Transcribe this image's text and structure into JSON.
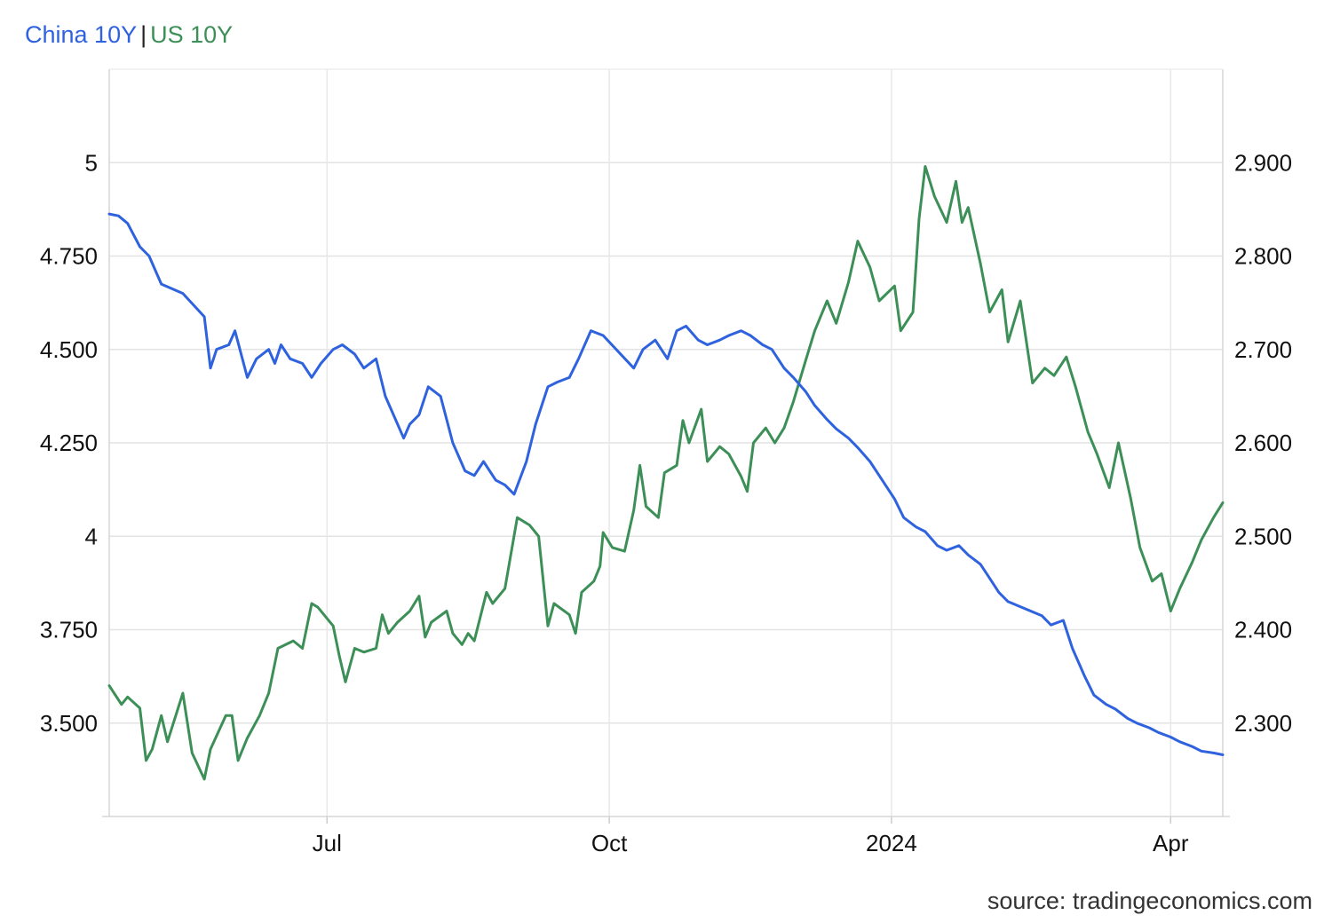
{
  "legend": {
    "china_label": "China 10Y",
    "separator": "|",
    "us_label": "US 10Y",
    "china_color": "#2f62de",
    "us_color": "#3c8f57"
  },
  "source": "source: tradingeconomics.com",
  "chart_data": {
    "type": "line",
    "x_range": [
      "2023-04-21",
      "2024-04-18"
    ],
    "x_ticks": [
      {
        "date": "2023-07-01",
        "label": "Jul"
      },
      {
        "date": "2023-10-01",
        "label": "Oct"
      },
      {
        "date": "2024-01-01",
        "label": "2024"
      },
      {
        "date": "2024-04-01",
        "label": "Apr"
      }
    ],
    "left_axis": {
      "series": "US 10Y",
      "range": [
        3.25,
        5.25
      ],
      "ticks": [
        3.5,
        3.75,
        4,
        4.25,
        4.5,
        4.75,
        5
      ],
      "tick_labels": [
        "3.500",
        "3.750",
        "4",
        "4.250",
        "4.500",
        "4.750",
        "5"
      ]
    },
    "right_axis": {
      "series": "China 10Y",
      "range": [
        2.2,
        3.0
      ],
      "ticks": [
        2.3,
        2.4,
        2.5,
        2.6,
        2.7,
        2.8,
        2.9
      ],
      "tick_labels": [
        "2.300",
        "2.400",
        "2.500",
        "2.600",
        "2.700",
        "2.800",
        "2.900"
      ]
    },
    "grid": true,
    "legend_position": "top-left",
    "series": [
      {
        "name": "China 10Y",
        "axis": "right",
        "color": "#2f62de",
        "points": [
          [
            "2023-04-21",
            2.845
          ],
          [
            "2023-04-24",
            2.843
          ],
          [
            "2023-04-27",
            2.835
          ],
          [
            "2023-05-01",
            2.81
          ],
          [
            "2023-05-04",
            2.8
          ],
          [
            "2023-05-08",
            2.77
          ],
          [
            "2023-05-15",
            2.76
          ],
          [
            "2023-05-22",
            2.735
          ],
          [
            "2023-05-24",
            2.68
          ],
          [
            "2023-05-26",
            2.7
          ],
          [
            "2023-05-30",
            2.705
          ],
          [
            "2023-06-01",
            2.72
          ],
          [
            "2023-06-05",
            2.67
          ],
          [
            "2023-06-08",
            2.69
          ],
          [
            "2023-06-12",
            2.7
          ],
          [
            "2023-06-14",
            2.685
          ],
          [
            "2023-06-16",
            2.705
          ],
          [
            "2023-06-19",
            2.69
          ],
          [
            "2023-06-23",
            2.685
          ],
          [
            "2023-06-26",
            2.67
          ],
          [
            "2023-06-29",
            2.685
          ],
          [
            "2023-07-03",
            2.7
          ],
          [
            "2023-07-06",
            2.705
          ],
          [
            "2023-07-10",
            2.695
          ],
          [
            "2023-07-13",
            2.68
          ],
          [
            "2023-07-17",
            2.69
          ],
          [
            "2023-07-20",
            2.65
          ],
          [
            "2023-07-24",
            2.62
          ],
          [
            "2023-07-26",
            2.605
          ],
          [
            "2023-07-28",
            2.62
          ],
          [
            "2023-07-31",
            2.63
          ],
          [
            "2023-08-03",
            2.66
          ],
          [
            "2023-08-07",
            2.65
          ],
          [
            "2023-08-11",
            2.6
          ],
          [
            "2023-08-15",
            2.57
          ],
          [
            "2023-08-18",
            2.565
          ],
          [
            "2023-08-21",
            2.58
          ],
          [
            "2023-08-25",
            2.56
          ],
          [
            "2023-08-28",
            2.555
          ],
          [
            "2023-08-31",
            2.545
          ],
          [
            "2023-09-04",
            2.58
          ],
          [
            "2023-09-07",
            2.62
          ],
          [
            "2023-09-11",
            2.66
          ],
          [
            "2023-09-14",
            2.665
          ],
          [
            "2023-09-18",
            2.67
          ],
          [
            "2023-09-21",
            2.69
          ],
          [
            "2023-09-25",
            2.72
          ],
          [
            "2023-09-29",
            2.715
          ],
          [
            "2023-10-09",
            2.68
          ],
          [
            "2023-10-12",
            2.7
          ],
          [
            "2023-10-16",
            2.71
          ],
          [
            "2023-10-20",
            2.69
          ],
          [
            "2023-10-23",
            2.72
          ],
          [
            "2023-10-26",
            2.725
          ],
          [
            "2023-10-30",
            2.71
          ],
          [
            "2023-11-02",
            2.705
          ],
          [
            "2023-11-06",
            2.71
          ],
          [
            "2023-11-09",
            2.715
          ],
          [
            "2023-11-13",
            2.72
          ],
          [
            "2023-11-16",
            2.715
          ],
          [
            "2023-11-20",
            2.705
          ],
          [
            "2023-11-23",
            2.7
          ],
          [
            "2023-11-27",
            2.68
          ],
          [
            "2023-11-30",
            2.67
          ],
          [
            "2023-12-04",
            2.655
          ],
          [
            "2023-12-07",
            2.64
          ],
          [
            "2023-12-11",
            2.625
          ],
          [
            "2023-12-14",
            2.615
          ],
          [
            "2023-12-18",
            2.605
          ],
          [
            "2023-12-21",
            2.595
          ],
          [
            "2023-12-25",
            2.58
          ],
          [
            "2023-12-28",
            2.565
          ],
          [
            "2024-01-02",
            2.54
          ],
          [
            "2024-01-05",
            2.52
          ],
          [
            "2024-01-09",
            2.51
          ],
          [
            "2024-01-12",
            2.505
          ],
          [
            "2024-01-16",
            2.49
          ],
          [
            "2024-01-19",
            2.485
          ],
          [
            "2024-01-23",
            2.49
          ],
          [
            "2024-01-26",
            2.48
          ],
          [
            "2024-01-30",
            2.47
          ],
          [
            "2024-02-02",
            2.455
          ],
          [
            "2024-02-05",
            2.44
          ],
          [
            "2024-02-08",
            2.43
          ],
          [
            "2024-02-19",
            2.415
          ],
          [
            "2024-02-22",
            2.405
          ],
          [
            "2024-02-26",
            2.41
          ],
          [
            "2024-02-29",
            2.38
          ],
          [
            "2024-03-04",
            2.35
          ],
          [
            "2024-03-07",
            2.33
          ],
          [
            "2024-03-11",
            2.32
          ],
          [
            "2024-03-14",
            2.315
          ],
          [
            "2024-03-18",
            2.305
          ],
          [
            "2024-03-21",
            2.3
          ],
          [
            "2024-03-25",
            2.295
          ],
          [
            "2024-03-28",
            2.29
          ],
          [
            "2024-04-01",
            2.285
          ],
          [
            "2024-04-04",
            2.28
          ],
          [
            "2024-04-08",
            2.275
          ],
          [
            "2024-04-11",
            2.27
          ],
          [
            "2024-04-15",
            2.268
          ],
          [
            "2024-04-18",
            2.266
          ]
        ]
      },
      {
        "name": "US 10Y",
        "axis": "left",
        "color": "#3c8f57",
        "points": [
          [
            "2023-04-21",
            3.6
          ],
          [
            "2023-04-25",
            3.55
          ],
          [
            "2023-04-27",
            3.57
          ],
          [
            "2023-05-01",
            3.54
          ],
          [
            "2023-05-03",
            3.4
          ],
          [
            "2023-05-05",
            3.43
          ],
          [
            "2023-05-08",
            3.52
          ],
          [
            "2023-05-10",
            3.45
          ],
          [
            "2023-05-15",
            3.58
          ],
          [
            "2023-05-18",
            3.42
          ],
          [
            "2023-05-22",
            3.35
          ],
          [
            "2023-05-24",
            3.43
          ],
          [
            "2023-05-29",
            3.52
          ],
          [
            "2023-05-31",
            3.52
          ],
          [
            "2023-06-02",
            3.4
          ],
          [
            "2023-06-05",
            3.46
          ],
          [
            "2023-06-09",
            3.52
          ],
          [
            "2023-06-12",
            3.58
          ],
          [
            "2023-06-15",
            3.7
          ],
          [
            "2023-06-20",
            3.72
          ],
          [
            "2023-06-23",
            3.7
          ],
          [
            "2023-06-26",
            3.82
          ],
          [
            "2023-06-28",
            3.81
          ],
          [
            "2023-07-03",
            3.76
          ],
          [
            "2023-07-05",
            3.68
          ],
          [
            "2023-07-07",
            3.61
          ],
          [
            "2023-07-10",
            3.7
          ],
          [
            "2023-07-13",
            3.69
          ],
          [
            "2023-07-17",
            3.7
          ],
          [
            "2023-07-19",
            3.79
          ],
          [
            "2023-07-21",
            3.74
          ],
          [
            "2023-07-24",
            3.77
          ],
          [
            "2023-07-28",
            3.8
          ],
          [
            "2023-07-31",
            3.84
          ],
          [
            "2023-08-02",
            3.73
          ],
          [
            "2023-08-04",
            3.77
          ],
          [
            "2023-08-09",
            3.8
          ],
          [
            "2023-08-11",
            3.74
          ],
          [
            "2023-08-14",
            3.71
          ],
          [
            "2023-08-16",
            3.74
          ],
          [
            "2023-08-18",
            3.72
          ],
          [
            "2023-08-22",
            3.85
          ],
          [
            "2023-08-24",
            3.82
          ],
          [
            "2023-08-28",
            3.86
          ],
          [
            "2023-09-01",
            4.05
          ],
          [
            "2023-09-05",
            4.03
          ],
          [
            "2023-09-08",
            4.0
          ],
          [
            "2023-09-11",
            3.76
          ],
          [
            "2023-09-13",
            3.82
          ],
          [
            "2023-09-18",
            3.79
          ],
          [
            "2023-09-20",
            3.74
          ],
          [
            "2023-09-22",
            3.85
          ],
          [
            "2023-09-26",
            3.88
          ],
          [
            "2023-09-28",
            3.92
          ],
          [
            "2023-09-29",
            4.01
          ],
          [
            "2023-10-02",
            3.97
          ],
          [
            "2023-10-06",
            3.96
          ],
          [
            "2023-10-09",
            4.07
          ],
          [
            "2023-10-11",
            4.19
          ],
          [
            "2023-10-13",
            4.08
          ],
          [
            "2023-10-17",
            4.05
          ],
          [
            "2023-10-19",
            4.17
          ],
          [
            "2023-10-23",
            4.19
          ],
          [
            "2023-10-25",
            4.31
          ],
          [
            "2023-10-27",
            4.25
          ],
          [
            "2023-10-31",
            4.34
          ],
          [
            "2023-11-02",
            4.2
          ],
          [
            "2023-11-06",
            4.24
          ],
          [
            "2023-11-09",
            4.22
          ],
          [
            "2023-11-13",
            4.16
          ],
          [
            "2023-11-15",
            4.12
          ],
          [
            "2023-11-17",
            4.25
          ],
          [
            "2023-11-21",
            4.29
          ],
          [
            "2023-11-24",
            4.25
          ],
          [
            "2023-11-27",
            4.29
          ],
          [
            "2023-11-30",
            4.36
          ],
          [
            "2023-12-04",
            4.47
          ],
          [
            "2023-12-07",
            4.55
          ],
          [
            "2023-12-11",
            4.63
          ],
          [
            "2023-12-14",
            4.57
          ],
          [
            "2023-12-18",
            4.68
          ],
          [
            "2023-12-21",
            4.79
          ],
          [
            "2023-12-25",
            4.72
          ],
          [
            "2023-12-28",
            4.63
          ],
          [
            "2024-01-02",
            4.67
          ],
          [
            "2024-01-04",
            4.55
          ],
          [
            "2024-01-08",
            4.6
          ],
          [
            "2024-01-10",
            4.85
          ],
          [
            "2024-01-12",
            4.99
          ],
          [
            "2024-01-15",
            4.91
          ],
          [
            "2024-01-19",
            4.84
          ],
          [
            "2024-01-22",
            4.95
          ],
          [
            "2024-01-24",
            4.84
          ],
          [
            "2024-01-26",
            4.88
          ],
          [
            "2024-01-30",
            4.73
          ],
          [
            "2024-02-02",
            4.6
          ],
          [
            "2024-02-06",
            4.66
          ],
          [
            "2024-02-08",
            4.52
          ],
          [
            "2024-02-12",
            4.63
          ],
          [
            "2024-02-16",
            4.41
          ],
          [
            "2024-02-20",
            4.45
          ],
          [
            "2024-02-23",
            4.43
          ],
          [
            "2024-02-27",
            4.48
          ],
          [
            "2024-03-01",
            4.4
          ],
          [
            "2024-03-05",
            4.28
          ],
          [
            "2024-03-08",
            4.22
          ],
          [
            "2024-03-12",
            4.13
          ],
          [
            "2024-03-15",
            4.25
          ],
          [
            "2024-03-19",
            4.1
          ],
          [
            "2024-03-22",
            3.97
          ],
          [
            "2024-03-26",
            3.88
          ],
          [
            "2024-03-29",
            3.9
          ],
          [
            "2024-04-01",
            3.8
          ],
          [
            "2024-04-04",
            3.86
          ],
          [
            "2024-04-08",
            3.93
          ],
          [
            "2024-04-11",
            3.99
          ],
          [
            "2024-04-15",
            4.05
          ],
          [
            "2024-04-18",
            4.09
          ]
        ]
      }
    ]
  }
}
